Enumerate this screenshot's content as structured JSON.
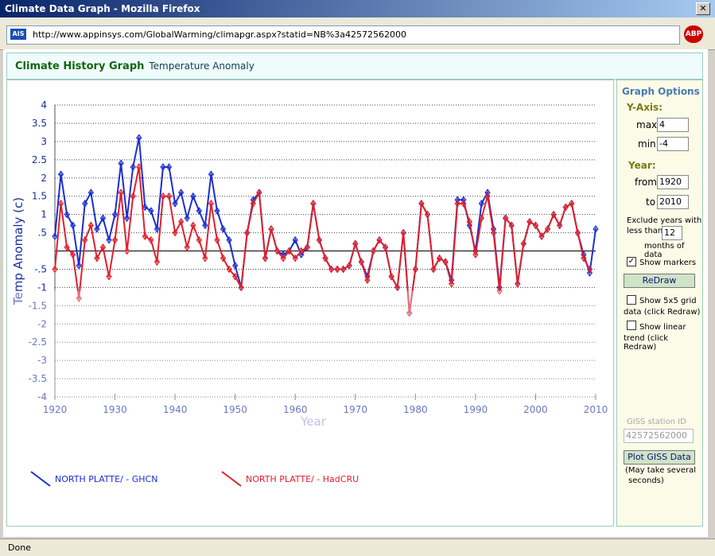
{
  "window": {
    "title": "Climate Data Graph - Mozilla Firefox",
    "url": "http://www.appinsys.com/GlobalWarming/climapgr.aspx?statid=NB%3a42572562000",
    "status": "Done"
  },
  "header": {
    "title": "Climate History Graph",
    "subtitle": "Temperature Anomaly"
  },
  "options": {
    "title": "Graph Options",
    "y_axis": "Y-Axis:",
    "max_label": "max",
    "max": "4",
    "min_label": "min",
    "min": "-4",
    "year": "Year:",
    "from_label": "from",
    "from": "1920",
    "to_label": "to",
    "to": "2010",
    "exclude_a": "Exclude years with",
    "exclude_b": "less than",
    "months": "12",
    "exclude_c": "months of data",
    "show_markers": "Show markers",
    "redraw": "ReDraw",
    "grid_a": "Show 5x5 grid",
    "grid_b": "data (click Redraw)",
    "trend_a": "Show linear",
    "trend_b": "trend (click Redraw)",
    "giss_label": "GISS station ID",
    "giss_id": "42572562000",
    "plot_giss": "Plot GISS Data",
    "note_a": "(May take several",
    "note_b": "seconds)"
  },
  "chart_data": {
    "type": "line",
    "xlabel": "Year",
    "ylabel": "Temp Anomaly (c)",
    "x": [
      1920,
      1921,
      1922,
      1923,
      1924,
      1925,
      1926,
      1927,
      1928,
      1929,
      1930,
      1931,
      1932,
      1933,
      1934,
      1935,
      1936,
      1937,
      1938,
      1939,
      1940,
      1941,
      1942,
      1943,
      1944,
      1945,
      1946,
      1947,
      1948,
      1949,
      1950,
      1951,
      1952,
      1953,
      1954,
      1955,
      1956,
      1957,
      1958,
      1959,
      1960,
      1961,
      1962,
      1963,
      1964,
      1965,
      1966,
      1967,
      1968,
      1969,
      1970,
      1971,
      1972,
      1973,
      1974,
      1975,
      1976,
      1977,
      1978,
      1979,
      1980,
      1981,
      1982,
      1983,
      1984,
      1985,
      1986,
      1987,
      1988,
      1989,
      1990,
      1991,
      1992,
      1993,
      1994,
      1995,
      1996,
      1997,
      1998,
      1999,
      2000,
      2001,
      2002,
      2003,
      2004,
      2005,
      2006,
      2007,
      2008,
      2009,
      2010
    ],
    "series": [
      {
        "name": "NORTH PLATTE/ - GHCN",
        "color": "#1a2fd0",
        "values": [
          0.4,
          2.1,
          1.0,
          0.7,
          -0.4,
          1.3,
          1.6,
          0.6,
          0.9,
          0.3,
          1.0,
          2.4,
          0.9,
          2.3,
          3.1,
          1.2,
          1.1,
          0.6,
          2.3,
          2.3,
          1.3,
          1.6,
          0.9,
          1.5,
          1.1,
          0.7,
          2.1,
          1.1,
          0.6,
          0.3,
          -0.4,
          -1.0,
          0.5,
          1.4,
          1.6,
          -0.2,
          0.6,
          0.0,
          -0.1,
          0.0,
          0.3,
          -0.1,
          0.1,
          1.3,
          0.3,
          -0.2,
          -0.5,
          -0.5,
          -0.5,
          -0.4,
          0.2,
          -0.3,
          -0.7,
          0.0,
          0.3,
          0.1,
          -0.7,
          -1.0,
          0.5,
          -1.7,
          -0.5,
          1.3,
          1.0,
          -0.5,
          -0.2,
          -0.3,
          -0.8,
          1.4,
          1.4,
          0.7,
          0.0,
          1.3,
          1.6,
          0.6,
          -1.0,
          0.9,
          0.7,
          -0.9,
          0.2,
          0.8,
          0.7,
          0.4,
          0.6,
          1.0,
          0.7,
          1.2,
          1.3,
          0.5,
          -0.1,
          -0.6,
          0.6
        ]
      },
      {
        "name": "NORTH PLATTE/ - HadCRU",
        "color": "#e0202a",
        "values": [
          -0.5,
          1.3,
          0.1,
          -0.1,
          -1.3,
          0.3,
          0.7,
          -0.2,
          0.1,
          -0.7,
          0.3,
          1.6,
          0.0,
          1.5,
          2.3,
          0.4,
          0.3,
          -0.3,
          1.5,
          1.5,
          0.5,
          0.8,
          0.1,
          0.7,
          0.3,
          -0.2,
          1.3,
          0.3,
          -0.2,
          -0.5,
          -0.7,
          -1.0,
          0.5,
          1.3,
          1.6,
          -0.2,
          0.6,
          0.0,
          -0.2,
          0.0,
          -0.2,
          0.0,
          0.1,
          1.3,
          0.3,
          -0.2,
          -0.5,
          -0.5,
          -0.5,
          -0.4,
          0.2,
          -0.3,
          -0.8,
          0.0,
          0.3,
          0.1,
          -0.7,
          -1.0,
          0.5,
          -1.7,
          -0.5,
          1.3,
          1.0,
          -0.5,
          -0.2,
          -0.3,
          -0.9,
          1.3,
          1.3,
          0.8,
          -0.1,
          0.9,
          1.5,
          0.5,
          -1.1,
          0.9,
          0.7,
          -0.9,
          0.2,
          0.8,
          0.7,
          0.4,
          0.6,
          1.0,
          0.7,
          1.2,
          1.3,
          0.5,
          -0.2,
          -0.5,
          null
        ]
      }
    ],
    "xlim": [
      1920,
      2010
    ],
    "xticks": [
      1920,
      1930,
      1940,
      1950,
      1960,
      1970,
      1980,
      1990,
      2000,
      2010
    ],
    "ylim": [
      -4,
      4
    ],
    "yticks": [
      4,
      3.5,
      3,
      2.5,
      2,
      1.5,
      1,
      {
        "value": 0.5,
        "label": ".5"
      },
      {
        "value": -0.5,
        "label": "-.5"
      },
      -1,
      -1.5,
      -2,
      -2.5,
      -3,
      -3.5,
      -4
    ],
    "grid": true,
    "markers": true
  }
}
